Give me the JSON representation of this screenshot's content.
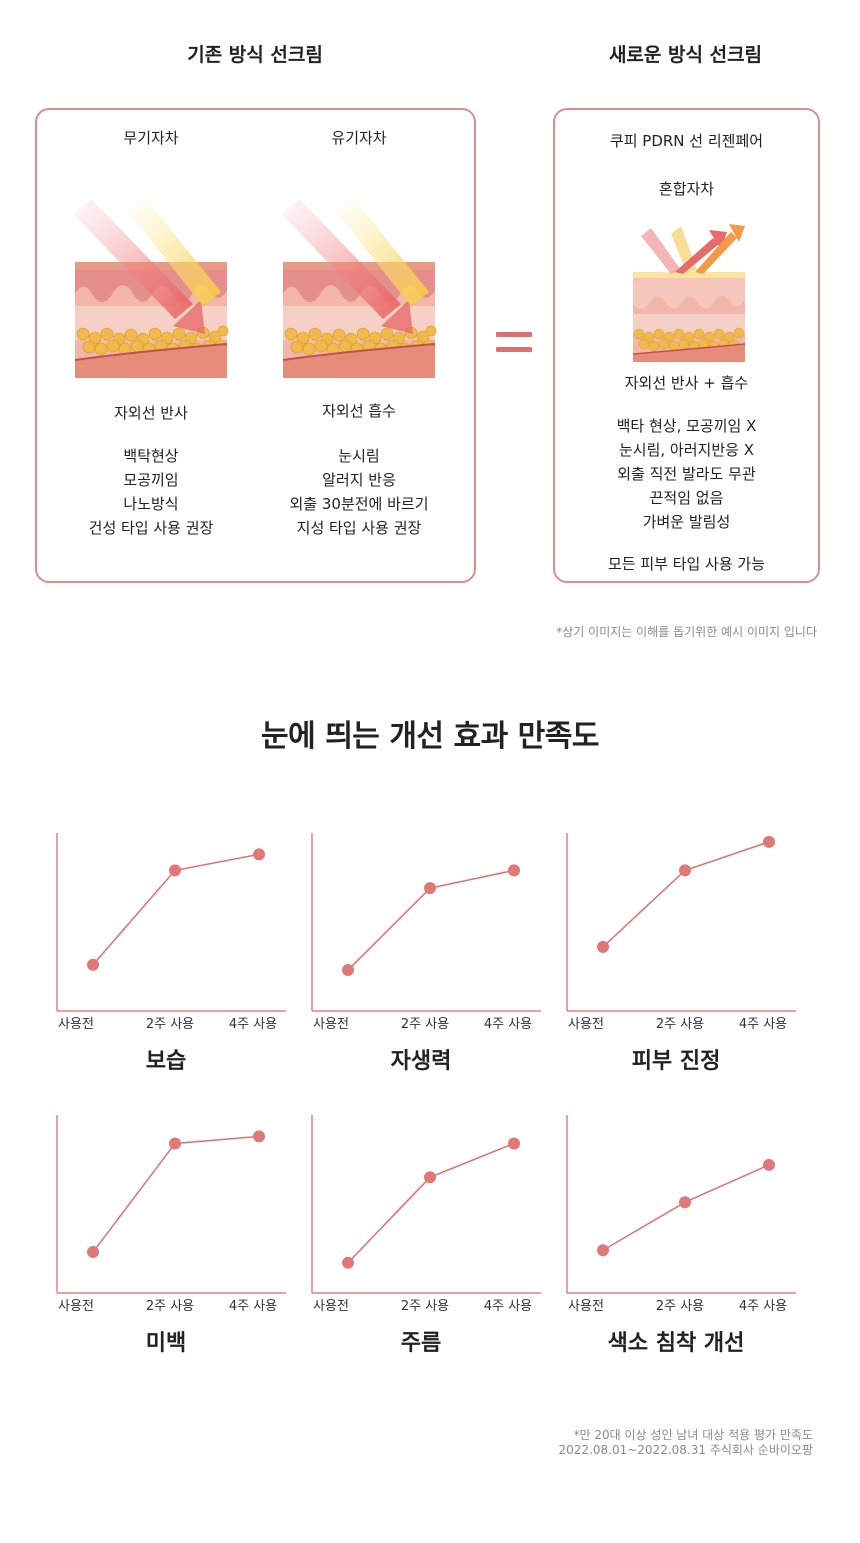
{
  "comparison": {
    "left_heading": "기존 방식 선크림",
    "right_heading": "새로운 방식 선크림",
    "inorganic": {
      "title": "무기자차",
      "mechanism": "자외선 반사",
      "features": [
        "백탁현상",
        "모공끼임",
        "나노방식",
        "건성 타입 사용 권장"
      ]
    },
    "organic": {
      "title": "유기자차",
      "mechanism": "자외선 흡수",
      "features": [
        "눈시림",
        "알러지 반응",
        "외출 30분전에 바르기",
        "지성 타입 사용 권장"
      ]
    },
    "product": {
      "name": "쿠피 PDRN 선 리젠페어",
      "type": "혼합자차",
      "mechanism": "자외선 반사 + 흡수",
      "features": [
        "백타 현상, 모공끼임 X",
        "눈시림, 아러지반응 X",
        "외출 직전 발라도 무관",
        "끈적임 없음",
        "가벼운  발림성"
      ],
      "footer": "모든 피부 타입 사용 가능"
    },
    "note": "*상기 이미지는 이해를 돕기위한 예시 이미지 입니다"
  },
  "satisfaction": {
    "title": "눈에 띄는 개선 효과 만족도",
    "footnote_line1": "*만 20대 이상 성인 남녀 대상 적용 평가 만족도",
    "footnote_line2": "2022.08.01~2022.08.31 주식회사 순바이오팡"
  },
  "colors": {
    "accent": "#e06f6f",
    "box_border": "#e08c8c",
    "marker": "#e07878",
    "axis": "#e08080"
  },
  "chart_data": [
    {
      "type": "line",
      "title": "보습",
      "categories": [
        "사용전",
        "2주 사용",
        "4주 사용"
      ],
      "values": [
        26,
        79,
        88
      ],
      "ylim": [
        0,
        100
      ]
    },
    {
      "type": "line",
      "title": "자생력",
      "categories": [
        "사용전",
        "2주 사용",
        "4주 사용"
      ],
      "values": [
        23,
        69,
        79
      ],
      "ylim": [
        0,
        100
      ]
    },
    {
      "type": "line",
      "title": "피부  진정",
      "categories": [
        "사용전",
        "2주 사용",
        "4주 사용"
      ],
      "values": [
        36,
        79,
        95
      ],
      "ylim": [
        0,
        100
      ]
    },
    {
      "type": "line",
      "title": "미백",
      "categories": [
        "사용전",
        "2주 사용",
        "4주 사용"
      ],
      "values": [
        23,
        84,
        88
      ],
      "ylim": [
        0,
        100
      ]
    },
    {
      "type": "line",
      "title": "주름",
      "categories": [
        "사용전",
        "2주 사용",
        "4주 사용"
      ],
      "values": [
        17,
        65,
        84
      ],
      "ylim": [
        0,
        100
      ]
    },
    {
      "type": "line",
      "title": "색소 침착 개선",
      "categories": [
        "사용전",
        "2주 사용",
        "4주 사용"
      ],
      "values": [
        24,
        51,
        72
      ],
      "ylim": [
        0,
        100
      ]
    }
  ]
}
